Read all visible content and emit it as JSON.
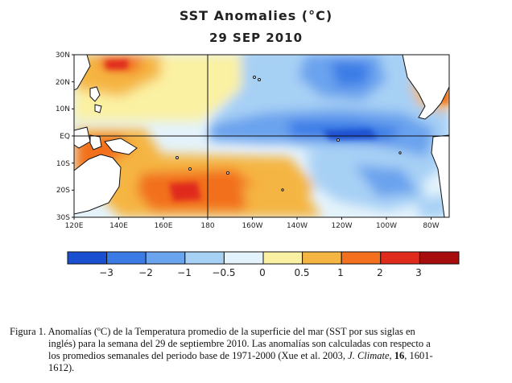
{
  "title": "SST Anomalies (°C)",
  "date": "29 SEP 2010",
  "map": {
    "lat_labels": [
      "30N",
      "20N",
      "10N",
      "EQ",
      "10S",
      "20S",
      "30S"
    ],
    "lon_labels": [
      "120E",
      "140E",
      "160E",
      "180",
      "160W",
      "140W",
      "120W",
      "100W",
      "80W"
    ],
    "grid_lines": [
      "EQ",
      "180"
    ]
  },
  "colorbar": {
    "tick_labels": [
      "−3",
      "−2",
      "−1",
      "−0.5",
      "0",
      "0.5",
      "1",
      "2",
      "3"
    ],
    "colors": [
      "#1a4fd1",
      "#3b7be6",
      "#6aa3ee",
      "#a7d0f5",
      "#e4f3fb",
      "#fbf1a2",
      "#f5b542",
      "#f2701e",
      "#e02a1c",
      "#a80d0d"
    ]
  },
  "caption": {
    "line1": "Figura 1. Anomalías (ºC) de la Temperatura promedio de la superficie del mar (SST por sus siglas en",
    "line2": "inglés) para la semana del 29 de septiembre 2010. Las anomalías son calculadas con respecto a",
    "line3a": "los promedios semanales del periodo base de 1971-2000 (Xue et al. 2003,",
    "journal": "J. Climate",
    "volume": "16",
    "line3b": ", 1601-",
    "line4": "1612)."
  }
}
